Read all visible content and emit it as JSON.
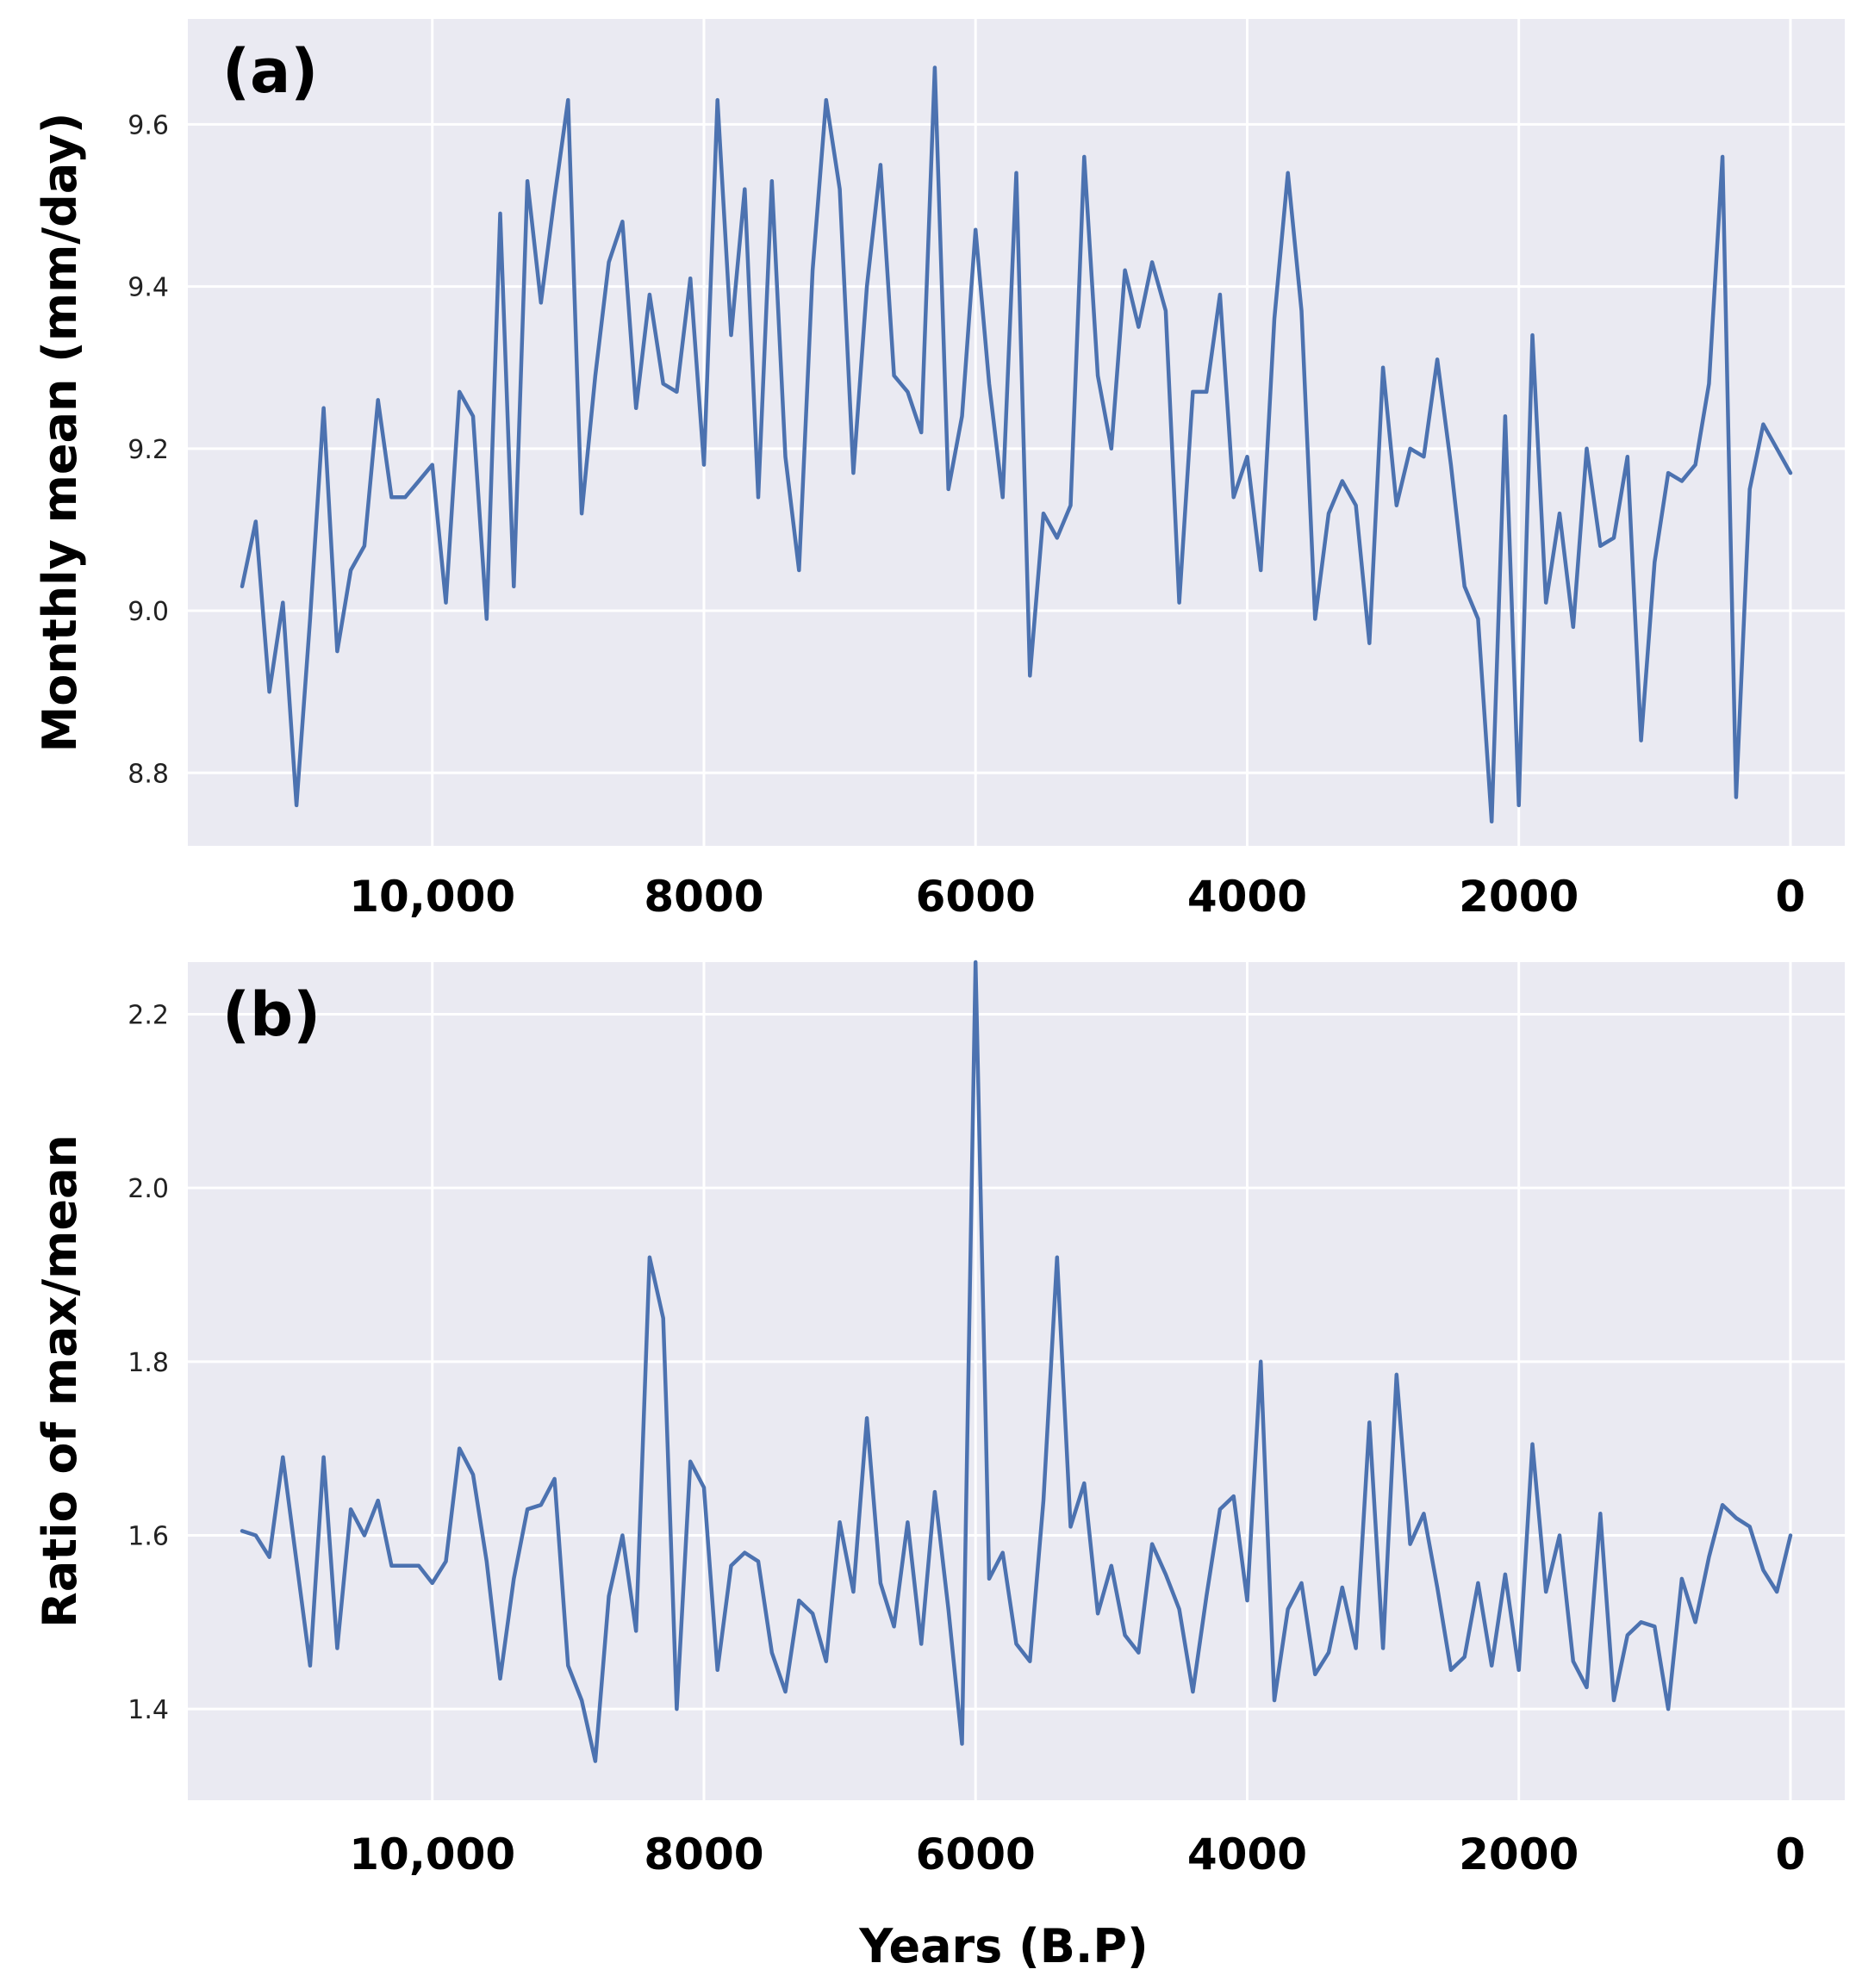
{
  "chart_data": [
    {
      "type": "line",
      "panel_label": "(a)",
      "title": "",
      "xlabel": "",
      "ylabel": "Monthly mean (mm/day)",
      "xlim": [
        11800,
        -400
      ],
      "ylim": [
        8.71,
        9.73
      ],
      "yticks": [
        8.8,
        9.0,
        9.2,
        9.4,
        9.6
      ],
      "ytick_labels": [
        "8.8",
        "9.0",
        "9.2",
        "9.4",
        "9.6"
      ],
      "xticks": [
        10000,
        8000,
        6000,
        4000,
        2000,
        0
      ],
      "xtick_labels": [
        "10,000",
        "8000",
        "6000",
        "4000",
        "2000",
        "0"
      ],
      "grid": true,
      "line_color": "#4c72b0",
      "background": "#eaeaf2",
      "x": [
        11400,
        11300,
        11200,
        11100,
        11000,
        10900,
        10800,
        10700,
        10600,
        10500,
        10400,
        10300,
        10200,
        10100,
        10000,
        9900,
        9800,
        9700,
        9600,
        9500,
        9400,
        9300,
        9200,
        9100,
        9000,
        8900,
        8800,
        8700,
        8600,
        8500,
        8400,
        8300,
        8200,
        8100,
        8000,
        7900,
        7800,
        7700,
        7600,
        7500,
        7400,
        7300,
        7200,
        7100,
        7000,
        6900,
        6800,
        6700,
        6600,
        6500,
        6400,
        6300,
        6200,
        6100,
        6000,
        5900,
        5800,
        5700,
        5600,
        5500,
        5400,
        5300,
        5200,
        5100,
        5000,
        4900,
        4800,
        4700,
        4600,
        4500,
        4400,
        4300,
        4200,
        4100,
        4000,
        3900,
        3800,
        3700,
        3600,
        3500,
        3400,
        3300,
        3200,
        3100,
        3000,
        2900,
        2800,
        2700,
        2600,
        2500,
        2400,
        2300,
        2200,
        2100,
        2000,
        1900,
        1800,
        1700,
        1600,
        1500,
        1400,
        1300,
        1200,
        1100,
        1000,
        900,
        800,
        700,
        600,
        500,
        400,
        300,
        200,
        100,
        0
      ],
      "y": [
        9.03,
        9.11,
        8.9,
        9.01,
        8.76,
        8.99,
        9.25,
        8.95,
        9.05,
        9.08,
        9.26,
        9.14,
        9.14,
        9.16,
        9.18,
        9.01,
        9.27,
        9.24,
        8.99,
        9.49,
        9.03,
        9.53,
        9.38,
        9.51,
        9.63,
        9.12,
        9.29,
        9.43,
        9.48,
        9.25,
        9.39,
        9.28,
        9.27,
        9.41,
        9.18,
        9.63,
        9.34,
        9.52,
        9.14,
        9.53,
        9.19,
        9.05,
        9.42,
        9.63,
        9.52,
        9.17,
        9.4,
        9.55,
        9.29,
        9.27,
        9.22,
        9.67,
        9.15,
        9.24,
        9.47,
        9.28,
        9.14,
        9.54,
        8.92,
        9.12,
        9.09,
        9.13,
        9.56,
        9.29,
        9.2,
        9.42,
        9.35,
        9.43,
        9.37,
        9.01,
        9.27,
        9.27,
        9.39,
        9.14,
        9.19,
        9.05,
        9.36,
        9.54,
        9.37,
        8.99,
        9.12,
        9.16,
        9.13,
        8.96,
        9.3,
        9.13,
        9.2,
        9.19,
        9.31,
        9.18,
        9.03,
        8.99,
        8.74,
        9.24,
        8.76,
        9.34,
        9.01,
        9.12,
        8.98,
        9.2,
        9.08,
        9.09,
        9.19,
        8.84,
        9.06,
        9.17,
        9.16,
        9.18,
        9.28,
        9.56,
        8.77,
        9.15,
        9.23,
        9.2,
        9.17
      ]
    },
    {
      "type": "line",
      "panel_label": "(b)",
      "title": "",
      "xlabel": "Years (B.P)",
      "ylabel": "Ratio of max/mean",
      "xlim": [
        11800,
        -400
      ],
      "ylim": [
        1.295,
        2.26
      ],
      "yticks": [
        1.4,
        1.6,
        1.8,
        2.0,
        2.2
      ],
      "ytick_labels": [
        "1.4",
        "1.6",
        "1.8",
        "2.0",
        "2.2"
      ],
      "xticks": [
        10000,
        8000,
        6000,
        4000,
        2000,
        0
      ],
      "xtick_labels": [
        "10,000",
        "8000",
        "6000",
        "4000",
        "2000",
        "0"
      ],
      "grid": true,
      "line_color": "#4c72b0",
      "background": "#eaeaf2",
      "x": [
        11400,
        11300,
        11200,
        11100,
        11000,
        10900,
        10800,
        10700,
        10600,
        10500,
        10400,
        10300,
        10200,
        10100,
        10000,
        9900,
        9800,
        9700,
        9600,
        9500,
        9400,
        9300,
        9200,
        9100,
        9000,
        8900,
        8800,
        8700,
        8600,
        8500,
        8400,
        8300,
        8200,
        8100,
        8000,
        7900,
        7800,
        7700,
        7600,
        7500,
        7400,
        7300,
        7200,
        7100,
        7000,
        6900,
        6800,
        6700,
        6600,
        6500,
        6400,
        6300,
        6200,
        6100,
        6000,
        5900,
        5800,
        5700,
        5600,
        5500,
        5400,
        5300,
        5200,
        5100,
        5000,
        4900,
        4800,
        4700,
        4600,
        4500,
        4400,
        4300,
        4200,
        4100,
        4000,
        3900,
        3800,
        3700,
        3600,
        3500,
        3400,
        3300,
        3200,
        3100,
        3000,
        2900,
        2800,
        2700,
        2600,
        2500,
        2400,
        2300,
        2200,
        2100,
        2000,
        1900,
        1800,
        1700,
        1600,
        1500,
        1400,
        1300,
        1200,
        1100,
        1000,
        900,
        800,
        700,
        600,
        500,
        400,
        300,
        200,
        100,
        0
      ],
      "y": [
        1.605,
        1.6,
        1.575,
        1.69,
        1.57,
        1.45,
        1.69,
        1.47,
        1.63,
        1.6,
        1.64,
        1.565,
        1.565,
        1.565,
        1.545,
        1.57,
        1.7,
        1.67,
        1.57,
        1.435,
        1.55,
        1.63,
        1.635,
        1.665,
        1.45,
        1.41,
        1.34,
        1.53,
        1.6,
        1.49,
        1.92,
        1.85,
        1.4,
        1.685,
        1.655,
        1.445,
        1.565,
        1.58,
        1.57,
        1.465,
        1.42,
        1.525,
        1.51,
        1.455,
        1.615,
        1.535,
        1.735,
        1.545,
        1.495,
        1.615,
        1.475,
        1.65,
        1.515,
        1.36,
        2.26,
        1.55,
        1.58,
        1.475,
        1.455,
        1.64,
        1.92,
        1.61,
        1.66,
        1.51,
        1.565,
        1.485,
        1.465,
        1.59,
        1.555,
        1.515,
        1.42,
        1.53,
        1.63,
        1.645,
        1.525,
        1.8,
        1.41,
        1.515,
        1.545,
        1.44,
        1.465,
        1.54,
        1.47,
        1.73,
        1.47,
        1.785,
        1.59,
        1.625,
        1.54,
        1.445,
        1.46,
        1.545,
        1.45,
        1.555,
        1.445,
        1.705,
        1.535,
        1.6,
        1.455,
        1.425,
        1.625,
        1.41,
        1.485,
        1.5,
        1.495,
        1.4,
        1.55,
        1.5,
        1.575,
        1.635,
        1.62,
        1.61,
        1.56,
        1.535,
        1.6
      ]
    }
  ]
}
